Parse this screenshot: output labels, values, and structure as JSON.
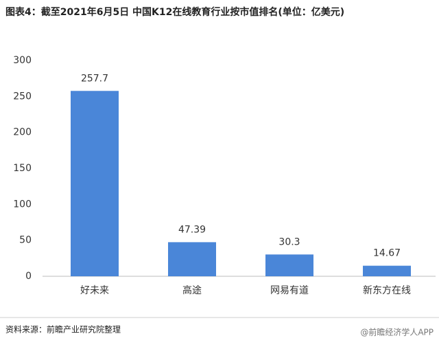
{
  "chart_data": {
    "type": "bar",
    "title": "图表4：截至2021年6月5日 中国K12在线教育行业按市值排名(单位：亿美元)",
    "categories": [
      "好未来",
      "高途",
      "网易有道",
      "新东方在线"
    ],
    "values": [
      257.7,
      47.39,
      30.3,
      14.67
    ],
    "color": "#4a86d8",
    "ylim": [
      0,
      300
    ],
    "yticks": [
      0,
      50,
      100,
      150,
      200,
      250,
      300
    ],
    "grid": false,
    "source": "资料来源：前瞻产业研究院整理",
    "watermark": "@前瞻经济学人APP"
  }
}
